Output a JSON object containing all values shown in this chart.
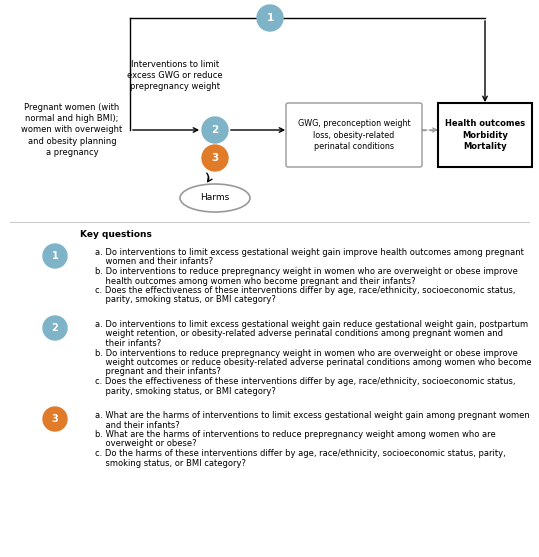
{
  "bg_color": "#ffffff",
  "fig_width": 5.39,
  "fig_height": 5.57,
  "dpi": 100,
  "population_text": "Pregnant women (with\nnormal and high BMI);\nwomen with overweight\nand obesity planning\na pregnancy",
  "intervention_text": "Interventions to limit\nexcess GWG or reduce\nprepregnancy weight",
  "gwg_box_text": "GWG, preconception weight\nloss, obesity-related\nperinatal conditions",
  "health_box_text": "Health outcomes\nMorbidity\nMortality",
  "harms_text": "Harms",
  "circle1_color": "#7fb3c8",
  "circle2_color": "#7fb3c8",
  "circle3_color": "#e07b2a",
  "circle_text_color": "#ffffff",
  "box_edge_color": "#999999",
  "health_box_edge_color": "#000000",
  "arrow_color": "#000000",
  "dashed_line_color": "#999999",
  "key_questions_title": "Key questions",
  "kq1_color": "#7fb3c8",
  "kq2_color": "#7fb3c8",
  "kq3_color": "#e07b2a",
  "kq1_lines": [
    "a. Do interventions to limit excess gestational weight gain improve health outcomes among pregnant",
    "    women and their infants?",
    "b. Do interventions to reduce prepregnancy weight in women who are overweight or obese improve",
    "    health outcomes among women who become pregnant and their infants?",
    "c. Does the effectiveness of these interventions differ by age, race/ethnicity, socioeconomic status,",
    "    parity, smoking status, or BMI category?"
  ],
  "kq2_lines": [
    "a. Do interventions to limit excess gestational weight gain reduce gestational weight gain, postpartum",
    "    weight retention, or obesity-related adverse perinatal conditions among pregnant women and",
    "    their infants?",
    "b. Do interventions to reduce prepregnancy weight in women who are overweight or obese improve",
    "    weight outcomes or reduce obesity-related adverse perinatal conditions among women who become",
    "    pregnant and their infants?",
    "c. Does the effectiveness of these interventions differ by age, race/ethnicity, socioeconomic status,",
    "    parity, smoking status, or BMI category?"
  ],
  "kq3_lines": [
    "a. What are the harms of interventions to limit excess gestational weight gain among pregnant women",
    "    and their infants?",
    "b. What are the harms of interventions to reduce prepregnancy weight among women who are",
    "    overweight or obese?",
    "c. Do the harms of these interventions differ by age, race/ethnicity, socioeconomic status, parity,",
    "    smoking status, or BMI category?"
  ]
}
